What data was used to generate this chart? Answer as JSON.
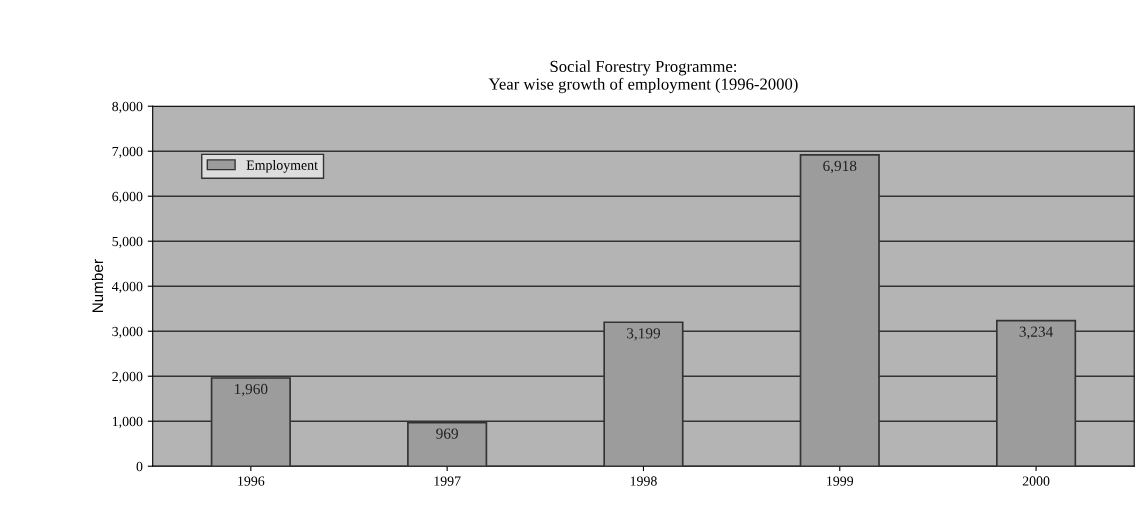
{
  "chart_data": {
    "type": "bar",
    "title": "Social Forestry Programme:\nYear wise growth of employment (1996-2000)",
    "ylabel": "Number",
    "categories": [
      "1996",
      "1997",
      "1998",
      "1999",
      "2000"
    ],
    "series": [
      {
        "name": "Employment",
        "color": "#9c9c9c",
        "values": [
          1960,
          969,
          3199,
          6918,
          3234
        ],
        "value_labels": [
          "1,960",
          "969",
          "3,199",
          "6,918",
          "3,234"
        ]
      }
    ],
    "ylim": [
      0,
      8000
    ],
    "yticks": [
      {
        "value": 0,
        "label": "0"
      },
      {
        "value": 1000,
        "label": "1,000"
      },
      {
        "value": 2000,
        "label": "2,000"
      },
      {
        "value": 3000,
        "label": "3,000"
      },
      {
        "value": 4000,
        "label": "4,000"
      },
      {
        "value": 5000,
        "label": "5,000"
      },
      {
        "value": 6000,
        "label": "6,000"
      },
      {
        "value": 7000,
        "label": "7,000"
      },
      {
        "value": 8000,
        "label": "8,000"
      }
    ],
    "grid": "y",
    "legend": "top left"
  }
}
